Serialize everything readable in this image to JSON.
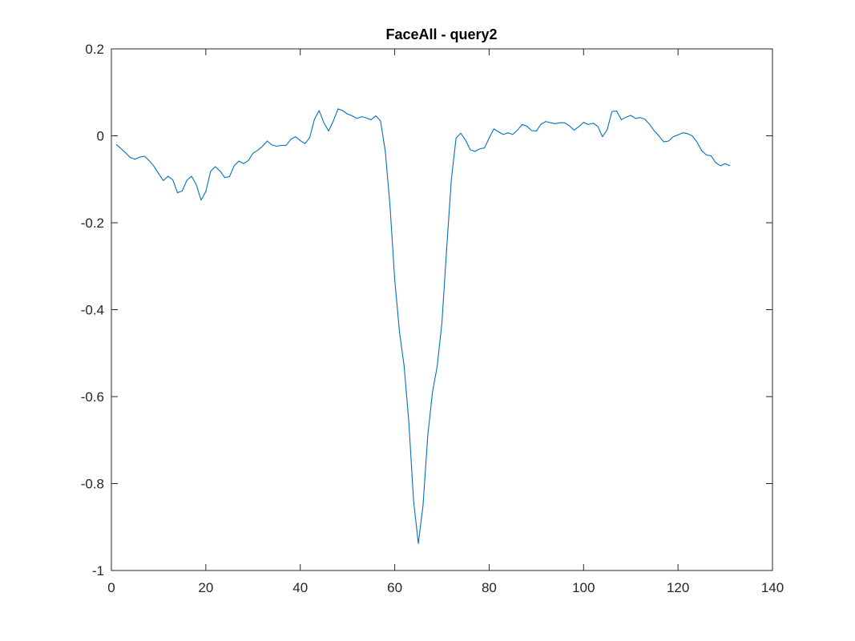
{
  "chart_data": {
    "type": "line",
    "title": "FaceAll - query2",
    "xlabel": "",
    "ylabel": "",
    "xlim": [
      0,
      140
    ],
    "ylim": [
      -1,
      0.2
    ],
    "xticks": [
      0,
      20,
      40,
      60,
      80,
      100,
      120,
      140
    ],
    "yticks": [
      -1,
      -0.8,
      -0.6,
      -0.4,
      -0.2,
      0,
      0.2
    ],
    "xtick_labels": [
      "0",
      "20",
      "40",
      "60",
      "80",
      "100",
      "120",
      "140"
    ],
    "ytick_labels": [
      "-1",
      "-0.8",
      "-0.6",
      "-0.4",
      "-0.2",
      "0",
      "0.2"
    ],
    "grid": false,
    "legend": false,
    "line_color": "#0072BD",
    "axes_color": "#262626",
    "series": [
      {
        "values": [
          -0.02,
          -0.029,
          -0.039,
          -0.05,
          -0.054,
          -0.049,
          -0.047,
          -0.057,
          -0.07,
          -0.087,
          -0.103,
          -0.093,
          -0.101,
          -0.131,
          -0.127,
          -0.102,
          -0.093,
          -0.113,
          -0.148,
          -0.128,
          -0.082,
          -0.071,
          -0.081,
          -0.096,
          -0.094,
          -0.069,
          -0.058,
          -0.064,
          -0.057,
          -0.04,
          -0.033,
          -0.024,
          -0.012,
          -0.021,
          -0.024,
          -0.022,
          -0.022,
          -0.008,
          -0.002,
          -0.011,
          -0.018,
          -0.004,
          0.038,
          0.058,
          0.03,
          0.011,
          0.034,
          0.062,
          0.058,
          0.05,
          0.046,
          0.04,
          0.044,
          0.041,
          0.037,
          0.046,
          0.034,
          -0.035,
          -0.16,
          -0.33,
          -0.45,
          -0.53,
          -0.66,
          -0.84,
          -0.938,
          -0.85,
          -0.69,
          -0.59,
          -0.53,
          -0.43,
          -0.26,
          -0.1,
          -0.005,
          0.006,
          -0.01,
          -0.032,
          -0.036,
          -0.03,
          -0.028,
          -0.005,
          0.016,
          0.009,
          0.003,
          0.007,
          0.003,
          0.013,
          0.026,
          0.022,
          0.012,
          0.011,
          0.027,
          0.033,
          0.03,
          0.028,
          0.03,
          0.03,
          0.023,
          0.013,
          0.021,
          0.031,
          0.026,
          0.029,
          0.022,
          -0.002,
          0.014,
          0.056,
          0.057,
          0.037,
          0.043,
          0.047,
          0.04,
          0.042,
          0.038,
          0.026,
          0.011,
          -0.001,
          -0.014,
          -0.012,
          -0.002,
          0.002,
          0.007,
          0.005,
          0.0,
          -0.014,
          -0.034,
          -0.044,
          -0.046,
          -0.062,
          -0.069,
          -0.064,
          -0.069
        ]
      }
    ]
  }
}
